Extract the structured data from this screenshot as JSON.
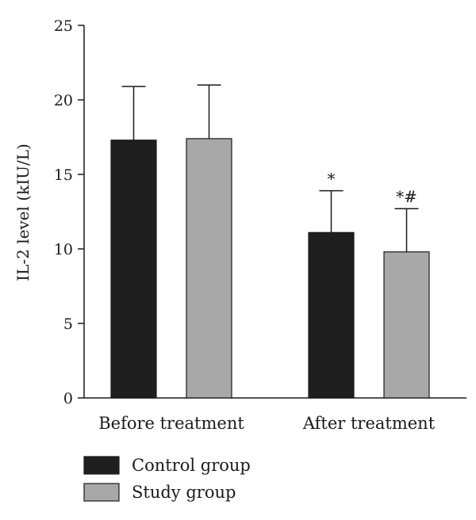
{
  "chart_data": {
    "type": "bar",
    "ylabel": "IL-2 level (kIU/L)",
    "ylim": [
      0,
      25
    ],
    "yticks": [
      0,
      5,
      10,
      15,
      20,
      25
    ],
    "categories": [
      "Before treatment",
      "After treatment"
    ],
    "series": [
      {
        "name": "Control group",
        "color": "#1f1f1f",
        "values": [
          17.3,
          11.1
        ],
        "error_upper": [
          20.9,
          13.9
        ],
        "annotations": [
          "",
          "*"
        ]
      },
      {
        "name": "Study group",
        "color": "#a8a8a8",
        "values": [
          17.4,
          9.8
        ],
        "error_upper": [
          21.0,
          12.7
        ],
        "annotations": [
          "",
          "*#"
        ]
      }
    ],
    "legend_position": "bottom-left",
    "grid": false
  }
}
